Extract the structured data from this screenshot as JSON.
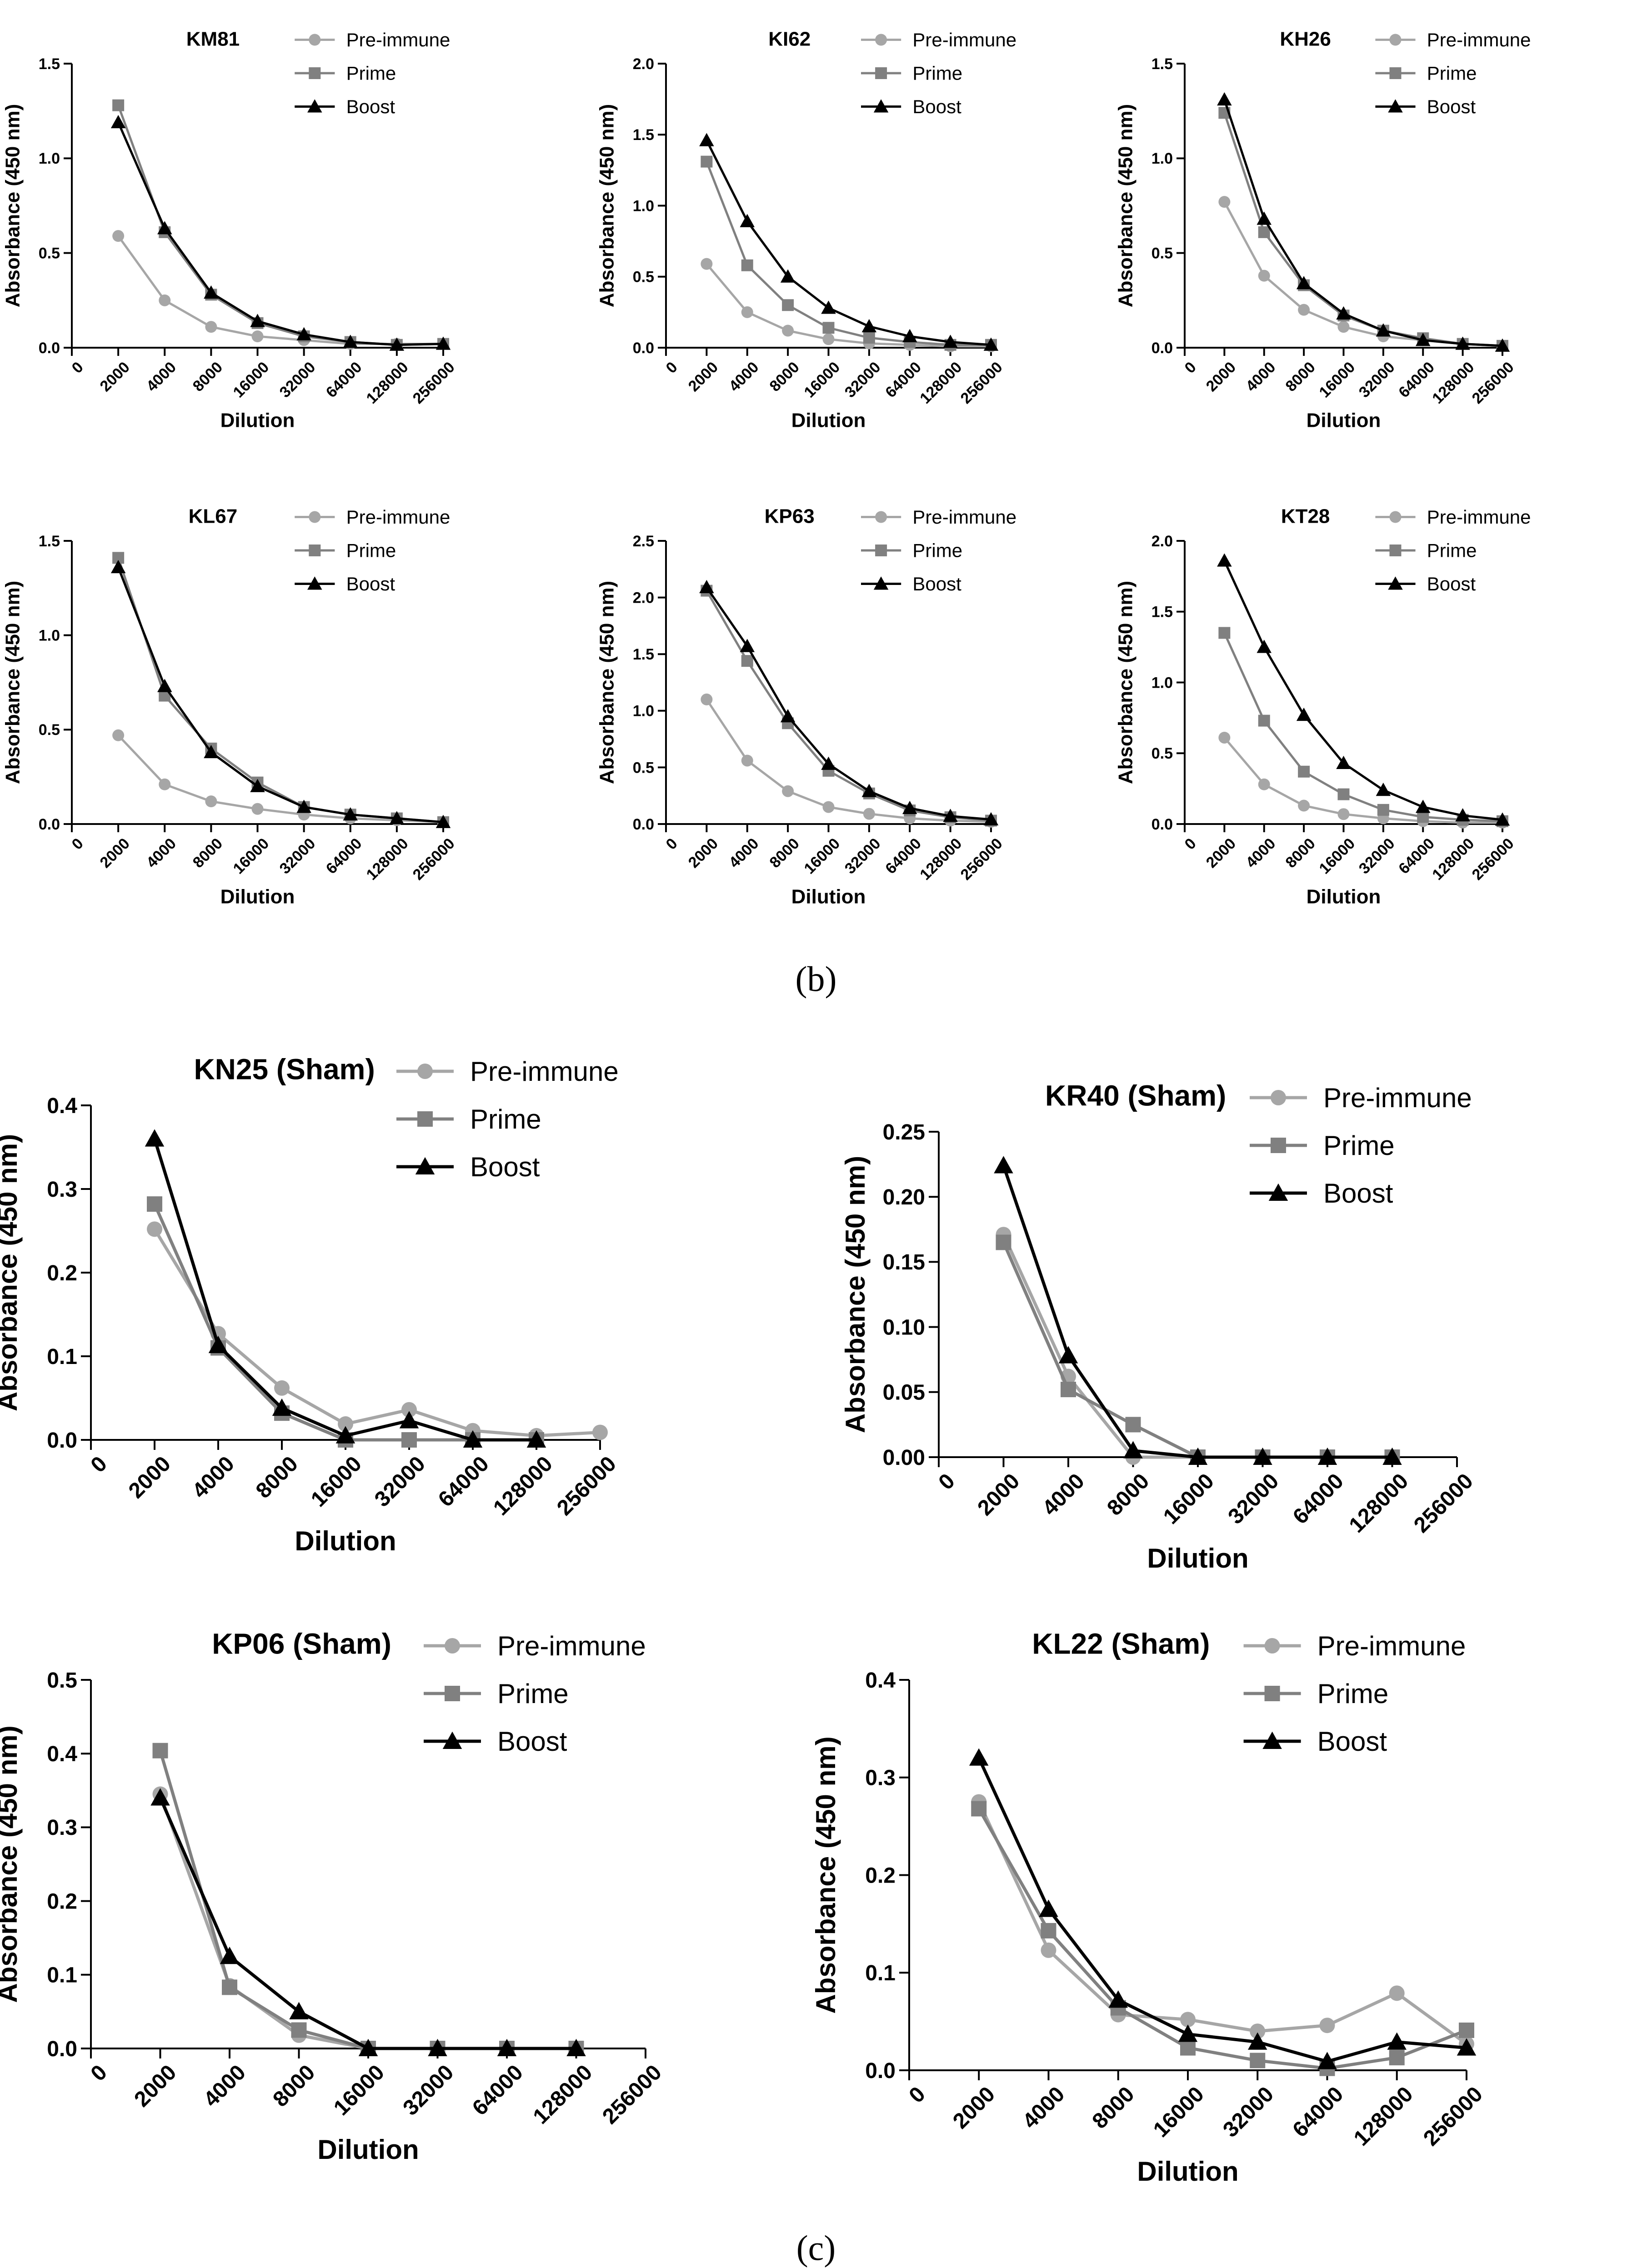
{
  "captions": [
    "(b)",
    "(c)"
  ],
  "styles": {
    "pre_immune_color": "#a6a6a6",
    "prime_color": "#808080",
    "boost_color": "#000000",
    "pre_immune_marker": "circle",
    "prime_marker": "square",
    "boost_marker": "triangle"
  },
  "chart_data": [
    {
      "type": "line",
      "title": "KM81",
      "xlabel": "Dilution",
      "ylabel": "Absorbance (450 nm)",
      "x_ticks": [
        "0",
        "2000",
        "4000",
        "8000",
        "16000",
        "32000",
        "64000",
        "128000",
        "256000"
      ],
      "y_ticks": [
        "0.0",
        "0.5",
        "1.0",
        "1.5"
      ],
      "ylim": [
        0,
        1.5
      ],
      "legend": "top-right",
      "grid": false,
      "series": [
        {
          "name": "Pre-immune",
          "values": [
            0.59,
            0.25,
            0.11,
            0.06,
            0.04,
            0.02,
            0.02,
            0.02
          ]
        },
        {
          "name": "Prime",
          "values": [
            1.28,
            0.61,
            0.28,
            0.13,
            0.06,
            0.03,
            0.015,
            0.02
          ]
        },
        {
          "name": "Boost",
          "values": [
            1.19,
            0.63,
            0.29,
            0.14,
            0.07,
            0.03,
            0.015,
            0.02
          ]
        }
      ]
    },
    {
      "type": "line",
      "title": "KI62",
      "xlabel": "Dilution",
      "ylabel": "Absorbance (450 nm)",
      "x_ticks": [
        "0",
        "2000",
        "4000",
        "8000",
        "16000",
        "32000",
        "64000",
        "128000",
        "256000"
      ],
      "y_ticks": [
        "0.0",
        "0.5",
        "1.0",
        "1.5",
        "2.0"
      ],
      "ylim": [
        0,
        2.0
      ],
      "legend": "top-right",
      "grid": false,
      "series": [
        {
          "name": "Pre-immune",
          "values": [
            0.59,
            0.25,
            0.12,
            0.06,
            0.03,
            0.02,
            0.01,
            0.01
          ]
        },
        {
          "name": "Prime",
          "values": [
            1.31,
            0.58,
            0.3,
            0.14,
            0.07,
            0.04,
            0.02,
            0.02
          ]
        },
        {
          "name": "Boost",
          "values": [
            1.46,
            0.89,
            0.5,
            0.28,
            0.15,
            0.08,
            0.04,
            0.02
          ]
        }
      ]
    },
    {
      "type": "line",
      "title": "KH26",
      "xlabel": "Dilution",
      "ylabel": "Absorbance (450 nm)",
      "x_ticks": [
        "0",
        "2000",
        "4000",
        "8000",
        "16000",
        "32000",
        "64000",
        "128000",
        "256000"
      ],
      "y_ticks": [
        "0.0",
        "0.5",
        "1.0",
        "1.5"
      ],
      "ylim": [
        0,
        1.5
      ],
      "legend": "top-right",
      "grid": false,
      "series": [
        {
          "name": "Pre-immune",
          "values": [
            0.77,
            0.38,
            0.2,
            0.11,
            0.06,
            0.04,
            0.02,
            0.01
          ]
        },
        {
          "name": "Prime",
          "values": [
            1.24,
            0.61,
            0.33,
            0.17,
            0.09,
            0.05,
            0.02,
            0.01
          ]
        },
        {
          "name": "Boost",
          "values": [
            1.31,
            0.68,
            0.34,
            0.18,
            0.09,
            0.04,
            0.02,
            0.01
          ]
        }
      ]
    },
    {
      "type": "line",
      "title": "KL67",
      "xlabel": "Dilution",
      "ylabel": "Absorbance (450 nm)",
      "x_ticks": [
        "0",
        "2000",
        "4000",
        "8000",
        "16000",
        "32000",
        "64000",
        "128000",
        "256000"
      ],
      "y_ticks": [
        "0.0",
        "0.5",
        "1.0",
        "1.5"
      ],
      "ylim": [
        0,
        1.5
      ],
      "legend": "top-right",
      "grid": false,
      "series": [
        {
          "name": "Pre-immune",
          "values": [
            0.47,
            0.21,
            0.12,
            0.08,
            0.05,
            0.03,
            0.02,
            0.01
          ]
        },
        {
          "name": "Prime",
          "values": [
            1.41,
            0.68,
            0.4,
            0.22,
            0.09,
            0.05,
            0.03,
            0.01
          ]
        },
        {
          "name": "Boost",
          "values": [
            1.36,
            0.73,
            0.38,
            0.2,
            0.09,
            0.05,
            0.03,
            0.01
          ]
        }
      ]
    },
    {
      "type": "line",
      "title": "KP63",
      "xlabel": "Dilution",
      "ylabel": "Absorbance (450 nm)",
      "x_ticks": [
        "0",
        "2000",
        "4000",
        "8000",
        "16000",
        "32000",
        "64000",
        "128000",
        "256000"
      ],
      "y_ticks": [
        "0.0",
        "0.5",
        "1.0",
        "1.5",
        "2.0",
        "2.5"
      ],
      "ylim": [
        0,
        2.5
      ],
      "legend": "top-right",
      "grid": false,
      "series": [
        {
          "name": "Pre-immune",
          "values": [
            1.1,
            0.56,
            0.29,
            0.15,
            0.09,
            0.05,
            0.03,
            0.02
          ]
        },
        {
          "name": "Prime",
          "values": [
            2.06,
            1.44,
            0.89,
            0.47,
            0.27,
            0.12,
            0.06,
            0.03
          ]
        },
        {
          "name": "Boost",
          "values": [
            2.09,
            1.57,
            0.95,
            0.53,
            0.29,
            0.14,
            0.07,
            0.04
          ]
        }
      ]
    },
    {
      "type": "line",
      "title": "KT28",
      "xlabel": "Dilution",
      "ylabel": "Absorbance (450 nm)",
      "x_ticks": [
        "0",
        "2000",
        "4000",
        "8000",
        "16000",
        "32000",
        "64000",
        "128000",
        "256000"
      ],
      "y_ticks": [
        "0.0",
        "0.5",
        "1.0",
        "1.5",
        "2.0"
      ],
      "ylim": [
        0,
        2.0
      ],
      "legend": "top-right",
      "grid": false,
      "series": [
        {
          "name": "Pre-immune",
          "values": [
            0.61,
            0.28,
            0.13,
            0.07,
            0.04,
            0.02,
            0.01,
            0.01
          ]
        },
        {
          "name": "Prime",
          "values": [
            1.35,
            0.73,
            0.37,
            0.21,
            0.1,
            0.05,
            0.03,
            0.02
          ]
        },
        {
          "name": "Boost",
          "values": [
            1.86,
            1.25,
            0.77,
            0.43,
            0.24,
            0.12,
            0.06,
            0.03
          ]
        }
      ]
    },
    {
      "type": "line",
      "title": "KN25 (Sham)",
      "xlabel": "Dilution",
      "ylabel": "Absorbance (450 nm)",
      "x_ticks": [
        "0",
        "2000",
        "4000",
        "8000",
        "16000",
        "32000",
        "64000",
        "128000",
        "256000"
      ],
      "y_ticks": [
        "0.0",
        "0.1",
        "0.2",
        "0.3",
        "0.4"
      ],
      "ylim": [
        0,
        0.4
      ],
      "legend": "top-right",
      "grid": false,
      "series": [
        {
          "name": "Pre-immune",
          "values": [
            0.252,
            0.127,
            0.062,
            0.019,
            0.036,
            0.011,
            0.005,
            0.009
          ]
        },
        {
          "name": "Prime",
          "values": [
            0.282,
            0.11,
            0.032,
            0.0,
            0.0,
            0.0,
            0.0
          ]
        },
        {
          "name": "Boost",
          "values": [
            0.36,
            0.113,
            0.038,
            0.005,
            0.023,
            0.0,
            0.0
          ]
        }
      ]
    },
    {
      "type": "line",
      "title": "KR40 (Sham)",
      "xlabel": "Dilution",
      "ylabel": "Absorbance (450 nm)",
      "x_ticks": [
        "0",
        "2000",
        "4000",
        "8000",
        "16000",
        "32000",
        "64000",
        "128000",
        "256000"
      ],
      "y_ticks": [
        "0.00",
        "0.05",
        "0.10",
        "0.15",
        "0.20",
        "0.25"
      ],
      "ylim": [
        0,
        0.25
      ],
      "legend": "top-right",
      "grid": false,
      "series": [
        {
          "name": "Pre-immune",
          "values": [
            0.171,
            0.062,
            0.0,
            0.0,
            0.0,
            0.0,
            0.0
          ]
        },
        {
          "name": "Prime",
          "values": [
            0.165,
            0.052,
            0.025,
            0.0,
            0.0,
            0.0,
            0.0
          ]
        },
        {
          "name": "Boost",
          "values": [
            0.224,
            0.078,
            0.005,
            0.0,
            0.0,
            0.0,
            0.0
          ]
        }
      ]
    },
    {
      "type": "line",
      "title": "KP06 (Sham)",
      "xlabel": "Dilution",
      "ylabel": "Absorbance (450 nm)",
      "x_ticks": [
        "0",
        "2000",
        "4000",
        "8000",
        "16000",
        "32000",
        "64000",
        "128000",
        "256000"
      ],
      "y_ticks": [
        "0.0",
        "0.1",
        "0.2",
        "0.3",
        "0.4",
        "0.5"
      ],
      "ylim": [
        0,
        0.5
      ],
      "legend": "top-right",
      "grid": false,
      "series": [
        {
          "name": "Pre-immune",
          "values": [
            0.345,
            0.085,
            0.018,
            0.0,
            0.0,
            0.0,
            0.0
          ]
        },
        {
          "name": "Prime",
          "values": [
            0.404,
            0.083,
            0.025,
            0.0,
            0.0,
            0.0,
            0.0
          ]
        },
        {
          "name": "Boost",
          "values": [
            0.34,
            0.125,
            0.05,
            0.0,
            0.0,
            0.0,
            0.0
          ]
        }
      ]
    },
    {
      "type": "line",
      "title": "KL22 (Sham)",
      "xlabel": "Dilution",
      "ylabel": "Absorbance (450 nm)",
      "x_ticks": [
        "0",
        "2000",
        "4000",
        "8000",
        "16000",
        "32000",
        "64000",
        "128000",
        "256000"
      ],
      "y_ticks": [
        "0.0",
        "0.1",
        "0.2",
        "0.3",
        "0.4"
      ],
      "ylim": [
        0,
        0.4
      ],
      "legend": "top-right",
      "grid": false,
      "series": [
        {
          "name": "Pre-immune",
          "values": [
            0.275,
            0.123,
            0.057,
            0.052,
            0.04,
            0.046,
            0.079,
            0.027
          ]
        },
        {
          "name": "Prime",
          "values": [
            0.268,
            0.143,
            0.064,
            0.023,
            0.01,
            0.002,
            0.013,
            0.041
          ]
        },
        {
          "name": "Boost",
          "values": [
            0.32,
            0.165,
            0.072,
            0.037,
            0.029,
            0.009,
            0.029,
            0.023
          ]
        }
      ]
    }
  ]
}
